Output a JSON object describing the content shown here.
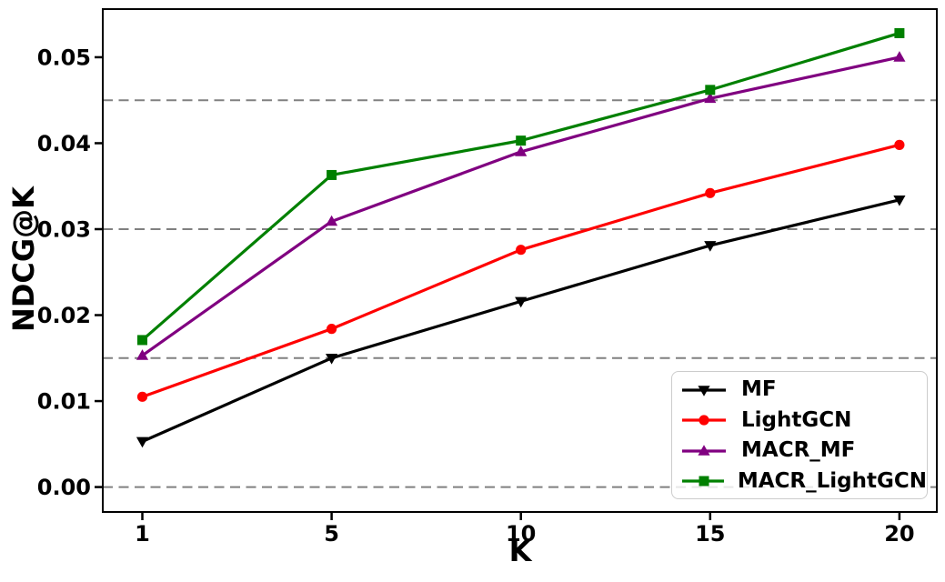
{
  "chart_data": {
    "type": "line",
    "title": "",
    "xlabel": "K",
    "ylabel": "NDCG@K",
    "x_tick_labels": [
      "1",
      "5",
      "10",
      "15",
      "20"
    ],
    "x_values": [
      1,
      5,
      10,
      15,
      20
    ],
    "x_axis_mode": "categorical-evenly-spaced",
    "y_tick_labels": [
      "0.00",
      "0.01",
      "0.02",
      "0.03",
      "0.04",
      "0.05"
    ],
    "y_tick_values": [
      0.0,
      0.01,
      0.02,
      0.03,
      0.04,
      0.05
    ],
    "ylim": [
      -0.0029,
      0.0556
    ],
    "grid": "horizontal dashed lines only",
    "gridline_values": [
      0.0,
      0.015,
      0.03,
      0.045
    ],
    "gridline_color": "#808080",
    "frame_color": "#000000",
    "legend_position": "lower-right",
    "legend_border_color": "#cccccc",
    "series": [
      {
        "name": "MF",
        "color": "#000000",
        "marker": "triangle-down",
        "values": [
          0.0053,
          0.015,
          0.0216,
          0.0281,
          0.0334
        ]
      },
      {
        "name": "LightGCN",
        "color": "#ff0000",
        "marker": "circle",
        "values": [
          0.0105,
          0.0184,
          0.0276,
          0.0342,
          0.0398
        ]
      },
      {
        "name": "MACR_MF",
        "color": "#800080",
        "marker": "triangle-up",
        "values": [
          0.0153,
          0.0309,
          0.039,
          0.0452,
          0.05
        ]
      },
      {
        "name": "MACR_LightGCN",
        "color": "#008000",
        "marker": "square",
        "values": [
          0.0171,
          0.0363,
          0.0403,
          0.0462,
          0.0528
        ]
      }
    ]
  }
}
